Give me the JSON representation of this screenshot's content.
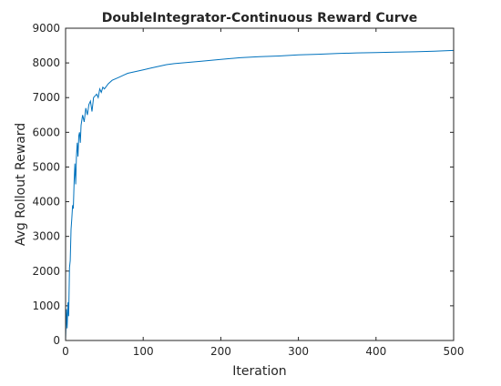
{
  "chart_data": {
    "type": "line",
    "title": "DoubleIntegrator-Continuous Reward Curve",
    "xlabel": "Iteration",
    "ylabel": "Avg Rollout Reward",
    "xlim": [
      0,
      500
    ],
    "ylim": [
      0,
      9000
    ],
    "xticks": [
      "0",
      "100",
      "200",
      "300",
      "400",
      "500"
    ],
    "yticks": [
      "0",
      "1000",
      "2000",
      "3000",
      "4000",
      "5000",
      "6000",
      "7000",
      "8000",
      "9000"
    ],
    "grid": false,
    "legend": "none",
    "series": [
      {
        "color": "#0072bd",
        "x": [
          0,
          1,
          2,
          3,
          4,
          5,
          6,
          7,
          8,
          9,
          10,
          11,
          12,
          13,
          14,
          15,
          16,
          17,
          18,
          19,
          20,
          22,
          24,
          26,
          28,
          30,
          32,
          34,
          36,
          38,
          40,
          42,
          44,
          46,
          48,
          50,
          55,
          60,
          65,
          70,
          75,
          80,
          90,
          100,
          110,
          120,
          130,
          140,
          150,
          175,
          200,
          225,
          250,
          275,
          300,
          325,
          350,
          375,
          400,
          425,
          450,
          475,
          500
        ],
        "y": [
          0,
          900,
          350,
          1100,
          700,
          2100,
          2300,
          3200,
          3500,
          3900,
          3800,
          4600,
          5100,
          4500,
          5300,
          5700,
          5300,
          5900,
          6000,
          5700,
          6200,
          6500,
          6300,
          6700,
          6500,
          6800,
          6900,
          6600,
          7000,
          7050,
          7100,
          7000,
          7250,
          7150,
          7300,
          7250,
          7400,
          7500,
          7550,
          7600,
          7650,
          7700,
          7750,
          7800,
          7850,
          7900,
          7950,
          7980,
          8000,
          8050,
          8100,
          8150,
          8180,
          8200,
          8230,
          8250,
          8270,
          8290,
          8300,
          8310,
          8320,
          8340,
          8360
        ]
      }
    ]
  }
}
